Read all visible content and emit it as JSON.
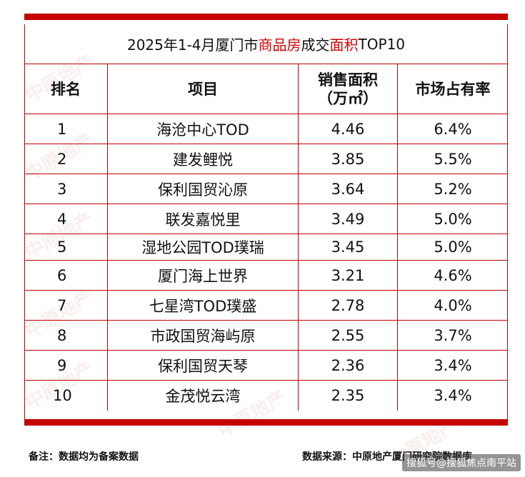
{
  "title": {
    "prefix": "2025年1-4月厦门市",
    "highlight1": "商品房",
    "middle": "成交",
    "highlight2": "面积",
    "suffix": "TOP10"
  },
  "headers": {
    "rank": "排名",
    "project": "项目",
    "area_line1": "销售面积",
    "area_line2": "（万㎡）",
    "share": "市场占有率"
  },
  "rows": [
    {
      "rank": "1",
      "project": "海沧中心TOD",
      "area": "4.46",
      "share": "6.4%"
    },
    {
      "rank": "2",
      "project": "建发鲤悦",
      "area": "3.85",
      "share": "5.5%"
    },
    {
      "rank": "3",
      "project": "保利国贸沁原",
      "area": "3.64",
      "share": "5.2%"
    },
    {
      "rank": "4",
      "project": "联发嘉悦里",
      "area": "3.49",
      "share": "5.0%"
    },
    {
      "rank": "5",
      "project": "湿地公园TOD璞瑞",
      "area": "3.45",
      "share": "5.0%"
    },
    {
      "rank": "6",
      "project": "厦门海上世界",
      "area": "3.21",
      "share": "4.6%"
    },
    {
      "rank": "7",
      "project": "七星湾TOD璞盛",
      "area": "2.78",
      "share": "4.0%"
    },
    {
      "rank": "8",
      "project": "市政国贸海屿原",
      "area": "2.55",
      "share": "3.7%"
    },
    {
      "rank": "9",
      "project": "保利国贸天琴",
      "area": "2.36",
      "share": "3.4%"
    },
    {
      "rank": "10",
      "project": "金茂悦云湾",
      "area": "2.35",
      "share": "3.4%"
    }
  ],
  "footer": {
    "note": "备注：数据均为备案数据",
    "source": "数据来源：中原地产厦门研究院数据库"
  },
  "watermark": {
    "brand": "中原地产",
    "corner": "搜狐号@搜狐焦点南平站"
  },
  "colors": {
    "accent_red": "#c40000",
    "title_red": "#d20000"
  }
}
